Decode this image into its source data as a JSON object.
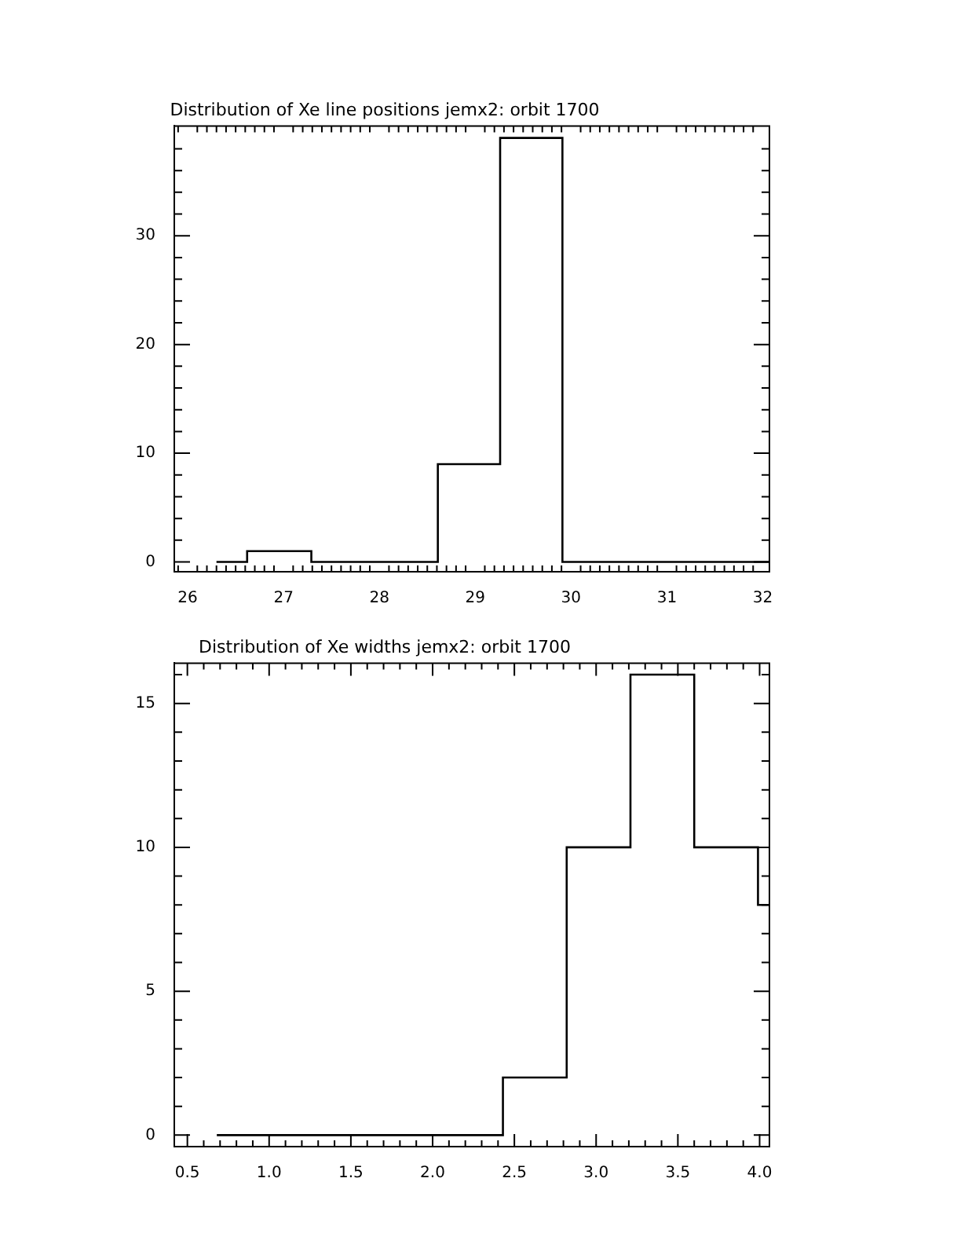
{
  "chart_data": [
    {
      "type": "histogram",
      "title": "Distribution of Xe line positions jemx2: orbit 1700",
      "bins": [
        26.3,
        26.62,
        27.29,
        28.61,
        29.26,
        29.91,
        32.07
      ],
      "values": [
        0,
        1,
        0,
        9,
        39,
        0
      ],
      "color": "#000000",
      "xlim": [
        25.86,
        32.07
      ],
      "ylim": [
        -0.9,
        40.1
      ],
      "xticks": [
        {
          "value": 25.9,
          "label": null
        },
        26,
        {
          "value": 26.1,
          "label": null
        },
        {
          "value": 26.2,
          "label": null
        },
        {
          "value": 26.3,
          "label": null
        },
        {
          "value": 26.4,
          "label": null
        },
        {
          "value": 26.5,
          "label": null
        },
        {
          "value": 26.6,
          "label": null
        },
        {
          "value": 26.7,
          "label": null
        },
        {
          "value": 26.8,
          "label": null
        },
        {
          "value": 26.9,
          "label": null
        },
        27,
        {
          "value": 27.1,
          "label": null
        },
        {
          "value": 27.2,
          "label": null
        },
        {
          "value": 27.3,
          "label": null
        },
        {
          "value": 27.4,
          "label": null
        },
        {
          "value": 27.5,
          "label": null
        },
        {
          "value": 27.6,
          "label": null
        },
        {
          "value": 27.7,
          "label": null
        },
        {
          "value": 27.8,
          "label": null
        },
        {
          "value": 27.9,
          "label": null
        },
        28,
        {
          "value": 28.1,
          "label": null
        },
        {
          "value": 28.2,
          "label": null
        },
        {
          "value": 28.3,
          "label": null
        },
        {
          "value": 28.4,
          "label": null
        },
        {
          "value": 28.5,
          "label": null
        },
        {
          "value": 28.6,
          "label": null
        },
        {
          "value": 28.7,
          "label": null
        },
        {
          "value": 28.8,
          "label": null
        },
        {
          "value": 28.9,
          "label": null
        },
        29,
        {
          "value": 29.1,
          "label": null
        },
        {
          "value": 29.2,
          "label": null
        },
        {
          "value": 29.3,
          "label": null
        },
        {
          "value": 29.4,
          "label": null
        },
        {
          "value": 29.5,
          "label": null
        },
        {
          "value": 29.6,
          "label": null
        },
        {
          "value": 29.7,
          "label": null
        },
        {
          "value": 29.8,
          "label": null
        },
        {
          "value": 29.9,
          "label": null
        },
        30,
        {
          "value": 30.1,
          "label": null
        },
        {
          "value": 30.2,
          "label": null
        },
        {
          "value": 30.3,
          "label": null
        },
        {
          "value": 30.4,
          "label": null
        },
        {
          "value": 30.5,
          "label": null
        },
        {
          "value": 30.6,
          "label": null
        },
        {
          "value": 30.7,
          "label": null
        },
        {
          "value": 30.8,
          "label": null
        },
        {
          "value": 30.9,
          "label": null
        },
        31,
        {
          "value": 31.1,
          "label": null
        },
        {
          "value": 31.2,
          "label": null
        },
        {
          "value": 31.3,
          "label": null
        },
        {
          "value": 31.4,
          "label": null
        },
        {
          "value": 31.5,
          "label": null
        },
        {
          "value": 31.6,
          "label": null
        },
        {
          "value": 31.7,
          "label": null
        },
        {
          "value": 31.8,
          "label": null
        },
        {
          "value": 31.9,
          "label": null
        },
        32
      ],
      "yticks": [
        0,
        {
          "value": 2,
          "label": null
        },
        {
          "value": 4,
          "label": null
        },
        {
          "value": 6,
          "label": null
        },
        {
          "value": 8,
          "label": null
        },
        10,
        {
          "value": 12,
          "label": null
        },
        {
          "value": 14,
          "label": null
        },
        {
          "value": 16,
          "label": null
        },
        {
          "value": 18,
          "label": null
        },
        20,
        {
          "value": 22,
          "label": null
        },
        {
          "value": 24,
          "label": null
        },
        {
          "value": 26,
          "label": null
        },
        {
          "value": 28,
          "label": null
        },
        30,
        {
          "value": 32,
          "label": null
        },
        {
          "value": 34,
          "label": null
        },
        {
          "value": 36,
          "label": null
        },
        {
          "value": 38,
          "label": null
        }
      ]
    },
    {
      "type": "histogram",
      "title": "Distribution of Xe widths jemx2: orbit 1700",
      "bins": [
        0.68,
        2.43,
        2.82,
        3.21,
        3.6,
        3.99,
        4.06
      ],
      "values": [
        0,
        2,
        10,
        16,
        10,
        8
      ],
      "color": "#000000",
      "xlim": [
        0.42,
        4.06
      ],
      "ylim": [
        -0.4,
        16.4
      ],
      "xticks": [
        {
          "value": 0.5,
          "label": "0.5"
        },
        {
          "value": 0.6,
          "label": null
        },
        {
          "value": 0.7,
          "label": null
        },
        {
          "value": 0.8,
          "label": null
        },
        {
          "value": 0.9,
          "label": null
        },
        {
          "value": 1,
          "label": "1.0"
        },
        {
          "value": 1.1,
          "label": null
        },
        {
          "value": 1.2,
          "label": null
        },
        {
          "value": 1.3,
          "label": null
        },
        {
          "value": 1.4,
          "label": null
        },
        {
          "value": 1.5,
          "label": "1.5"
        },
        {
          "value": 1.6,
          "label": null
        },
        {
          "value": 1.7,
          "label": null
        },
        {
          "value": 1.8,
          "label": null
        },
        {
          "value": 1.9,
          "label": null
        },
        {
          "value": 2,
          "label": "2.0"
        },
        {
          "value": 2.1,
          "label": null
        },
        {
          "value": 2.2,
          "label": null
        },
        {
          "value": 2.3,
          "label": null
        },
        {
          "value": 2.4,
          "label": null
        },
        {
          "value": 2.5,
          "label": "2.5"
        },
        {
          "value": 2.6,
          "label": null
        },
        {
          "value": 2.7,
          "label": null
        },
        {
          "value": 2.8,
          "label": null
        },
        {
          "value": 2.9,
          "label": null
        },
        {
          "value": 3,
          "label": "3.0"
        },
        {
          "value": 3.1,
          "label": null
        },
        {
          "value": 3.2,
          "label": null
        },
        {
          "value": 3.3,
          "label": null
        },
        {
          "value": 3.4,
          "label": null
        },
        {
          "value": 3.5,
          "label": "3.5"
        },
        {
          "value": 3.6,
          "label": null
        },
        {
          "value": 3.7,
          "label": null
        },
        {
          "value": 3.8,
          "label": null
        },
        {
          "value": 3.9,
          "label": null
        },
        {
          "value": 4,
          "label": "4.0"
        }
      ],
      "yticks": [
        0,
        {
          "value": 1,
          "label": null
        },
        {
          "value": 2,
          "label": null
        },
        {
          "value": 3,
          "label": null
        },
        {
          "value": 4,
          "label": null
        },
        5,
        {
          "value": 6,
          "label": null
        },
        {
          "value": 7,
          "label": null
        },
        {
          "value": 8,
          "label": null
        },
        {
          "value": 9,
          "label": null
        },
        10,
        {
          "value": 11,
          "label": null
        },
        {
          "value": 12,
          "label": null
        },
        {
          "value": 13,
          "label": null
        },
        {
          "value": 14,
          "label": null
        },
        15,
        {
          "value": 16,
          "label": null
        }
      ]
    }
  ]
}
